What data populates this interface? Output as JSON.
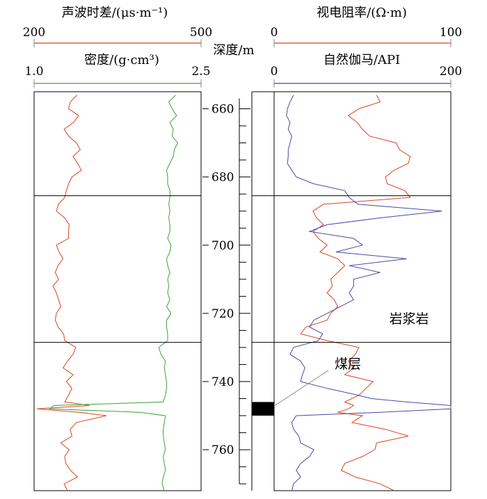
{
  "chart_data": {
    "type": "line",
    "depth_axis": {
      "label": "深度/m",
      "range": [
        655,
        772
      ],
      "ticks": [
        660,
        680,
        700,
        720,
        740,
        760
      ]
    },
    "left_track": {
      "curves": [
        {
          "name": "sonic",
          "title": "声波时差/(μs·m⁻¹)",
          "range": [
            200,
            500
          ],
          "tick_labels": [
            "200",
            "500"
          ],
          "color": "#d9441c",
          "points": [
            [
              656,
              277
            ],
            [
              658,
              265
            ],
            [
              660,
              262
            ],
            [
              662,
              280
            ],
            [
              664,
              271
            ],
            [
              666,
              254
            ],
            [
              668,
              262
            ],
            [
              670,
              276
            ],
            [
              672,
              283
            ],
            [
              674,
              270
            ],
            [
              676,
              278
            ],
            [
              678,
              285
            ],
            [
              680,
              268
            ],
            [
              682,
              262
            ],
            [
              684,
              258
            ],
            [
              686,
              255
            ],
            [
              688,
              244
            ],
            [
              690,
              240
            ],
            [
              692,
              255
            ],
            [
              694,
              263
            ],
            [
              696,
              262
            ],
            [
              698,
              262
            ],
            [
              700,
              240
            ],
            [
              702,
              245
            ],
            [
              704,
              252
            ],
            [
              706,
              243
            ],
            [
              708,
              238
            ],
            [
              710,
              244
            ],
            [
              712,
              234
            ],
            [
              714,
              240
            ],
            [
              716,
              244
            ],
            [
              718,
              248
            ],
            [
              720,
              240
            ],
            [
              722,
              238
            ],
            [
              724,
              243
            ],
            [
              726,
              253
            ],
            [
              728,
              255
            ],
            [
              730,
              275
            ],
            [
              732,
              270
            ],
            [
              734,
              260
            ],
            [
              736,
              252
            ],
            [
              738,
              270
            ],
            [
              740,
              258
            ],
            [
              742,
              268
            ],
            [
              744,
              262
            ],
            [
              746,
              255
            ],
            [
              747,
              300
            ],
            [
              748,
              205
            ],
            [
              749,
              280
            ],
            [
              750,
              330
            ],
            [
              752,
              276
            ],
            [
              754,
              265
            ],
            [
              756,
              268
            ],
            [
              758,
              248
            ],
            [
              760,
              263
            ],
            [
              762,
              255
            ],
            [
              764,
              257
            ],
            [
              766,
              265
            ],
            [
              768,
              278
            ],
            [
              770,
              254
            ],
            [
              772,
              260
            ]
          ]
        },
        {
          "name": "density",
          "title": "密度/(g·cm³)",
          "range": [
            1.0,
            2.5
          ],
          "tick_labels": [
            "1.0",
            "2.5"
          ],
          "color": "#3aa336",
          "points": [
            [
              656,
              2.27
            ],
            [
              658,
              2.21
            ],
            [
              660,
              2.24
            ],
            [
              662,
              2.28
            ],
            [
              664,
              2.22
            ],
            [
              666,
              2.25
            ],
            [
              668,
              2.24
            ],
            [
              670,
              2.29
            ],
            [
              672,
              2.26
            ],
            [
              674,
              2.25
            ],
            [
              676,
              2.22
            ],
            [
              678,
              2.19
            ],
            [
              680,
              2.2
            ],
            [
              682,
              2.2
            ],
            [
              684,
              2.22
            ],
            [
              686,
              2.22
            ],
            [
              688,
              2.21
            ],
            [
              690,
              2.22
            ],
            [
              692,
              2.21
            ],
            [
              694,
              2.22
            ],
            [
              696,
              2.22
            ],
            [
              698,
              2.2
            ],
            [
              700,
              2.23
            ],
            [
              702,
              2.22
            ],
            [
              704,
              2.19
            ],
            [
              706,
              2.2
            ],
            [
              708,
              2.22
            ],
            [
              710,
              2.2
            ],
            [
              712,
              2.21
            ],
            [
              714,
              2.2
            ],
            [
              716,
              2.22
            ],
            [
              718,
              2.19
            ],
            [
              720,
              2.23
            ],
            [
              722,
              2.19
            ],
            [
              724,
              2.19
            ],
            [
              726,
              2.2
            ],
            [
              728,
              2.2
            ],
            [
              730,
              2.12
            ],
            [
              732,
              2.14
            ],
            [
              734,
              2.18
            ],
            [
              736,
              2.17
            ],
            [
              738,
              2.18
            ],
            [
              740,
              2.19
            ],
            [
              742,
              2.19
            ],
            [
              744,
              2.18
            ],
            [
              746,
              2.16
            ],
            [
              747,
              1.18
            ],
            [
              748,
              1.14
            ],
            [
              749,
              1.95
            ],
            [
              750,
              2.18
            ],
            [
              752,
              2.17
            ],
            [
              754,
              2.16
            ],
            [
              756,
              2.16
            ],
            [
              758,
              2.17
            ],
            [
              760,
              2.18
            ],
            [
              762,
              2.16
            ],
            [
              764,
              2.17
            ],
            [
              766,
              2.18
            ],
            [
              768,
              2.16
            ],
            [
              770,
              2.15
            ],
            [
              772,
              2.17
            ]
          ]
        }
      ]
    },
    "right_track": {
      "curves": [
        {
          "name": "resistivity",
          "title": "视电阻率/(Ω·m)",
          "range": [
            0,
            100
          ],
          "tick_labels": [
            "0",
            "100"
          ],
          "color": "#d9441c",
          "points": [
            [
              656,
              58
            ],
            [
              658,
              60
            ],
            [
              660,
              48
            ],
            [
              662,
              42
            ],
            [
              664,
              47
            ],
            [
              666,
              50
            ],
            [
              668,
              54
            ],
            [
              670,
              69
            ],
            [
              672,
              71
            ],
            [
              674,
              77
            ],
            [
              676,
              76
            ],
            [
              678,
              68
            ],
            [
              680,
              63
            ],
            [
              682,
              64
            ],
            [
              684,
              74
            ],
            [
              686,
              77
            ],
            [
              688,
              28
            ],
            [
              690,
              22
            ],
            [
              692,
              24
            ],
            [
              694,
              28
            ],
            [
              696,
              22
            ],
            [
              698,
              25
            ],
            [
              700,
              30
            ],
            [
              702,
              26
            ],
            [
              704,
              36
            ],
            [
              706,
              40
            ],
            [
              708,
              36
            ],
            [
              710,
              32
            ],
            [
              712,
              33
            ],
            [
              714,
              30
            ],
            [
              716,
              34
            ],
            [
              718,
              36
            ],
            [
              720,
              32
            ],
            [
              722,
              30
            ],
            [
              724,
              18
            ],
            [
              726,
              15
            ],
            [
              728,
              30
            ],
            [
              730,
              48
            ],
            [
              732,
              46
            ],
            [
              734,
              42
            ],
            [
              736,
              45
            ],
            [
              738,
              40
            ],
            [
              740,
              56
            ],
            [
              742,
              52
            ],
            [
              744,
              48
            ],
            [
              746,
              40
            ],
            [
              747,
              45
            ],
            [
              748,
              42
            ],
            [
              749,
              36
            ],
            [
              750,
              50
            ],
            [
              752,
              44
            ],
            [
              754,
              63
            ],
            [
              756,
              76
            ],
            [
              758,
              58
            ],
            [
              760,
              57
            ],
            [
              762,
              50
            ],
            [
              764,
              40
            ],
            [
              766,
              38
            ],
            [
              768,
              46
            ],
            [
              770,
              60
            ],
            [
              772,
              68
            ]
          ]
        },
        {
          "name": "gamma",
          "title": "自然伽马/API",
          "range": [
            0,
            200
          ],
          "tick_labels": [
            "0",
            "200"
          ],
          "color": "#4a48a8",
          "points": [
            [
              656,
              22
            ],
            [
              658,
              18
            ],
            [
              660,
              15
            ],
            [
              662,
              14
            ],
            [
              664,
              18
            ],
            [
              666,
              16
            ],
            [
              668,
              20
            ],
            [
              670,
              18
            ],
            [
              672,
              16
            ],
            [
              674,
              16
            ],
            [
              676,
              15
            ],
            [
              678,
              20
            ],
            [
              680,
              25
            ],
            [
              682,
              45
            ],
            [
              684,
              80
            ],
            [
              686,
              85
            ],
            [
              688,
              95
            ],
            [
              690,
              190
            ],
            [
              692,
              120
            ],
            [
              694,
              60
            ],
            [
              696,
              40
            ],
            [
              698,
              90
            ],
            [
              700,
              100
            ],
            [
              702,
              70
            ],
            [
              704,
              150
            ],
            [
              706,
              85
            ],
            [
              708,
              120
            ],
            [
              710,
              90
            ],
            [
              712,
              90
            ],
            [
              714,
              85
            ],
            [
              716,
              90
            ],
            [
              718,
              75
            ],
            [
              720,
              60
            ],
            [
              722,
              45
            ],
            [
              724,
              40
            ],
            [
              726,
              55
            ],
            [
              728,
              50
            ],
            [
              730,
              22
            ],
            [
              732,
              18
            ],
            [
              734,
              30
            ],
            [
              736,
              35
            ],
            [
              738,
              32
            ],
            [
              740,
              30
            ],
            [
              742,
              60
            ],
            [
              744,
              95
            ],
            [
              745,
              110
            ],
            [
              746,
              150
            ],
            [
              747,
              200
            ],
            [
              748,
              200
            ],
            [
              749,
              120
            ],
            [
              750,
              25
            ],
            [
              752,
              20
            ],
            [
              754,
              22
            ],
            [
              756,
              28
            ],
            [
              758,
              30
            ],
            [
              760,
              45
            ],
            [
              762,
              40
            ],
            [
              764,
              30
            ],
            [
              766,
              25
            ],
            [
              768,
              30
            ],
            [
              770,
              22
            ],
            [
              772,
              20
            ]
          ]
        }
      ]
    },
    "formations": [
      {
        "name": "upper",
        "top": 655,
        "bottom": 685.5
      },
      {
        "name": "middle",
        "top": 685.5,
        "bottom": 728.5
      },
      {
        "name": "lower",
        "top": 728.5,
        "bottom": 772
      }
    ],
    "annotations": {
      "igneous": "岩浆岩",
      "coal": "煤层"
    },
    "coal_seam": {
      "top": 746,
      "bottom": 750
    }
  }
}
